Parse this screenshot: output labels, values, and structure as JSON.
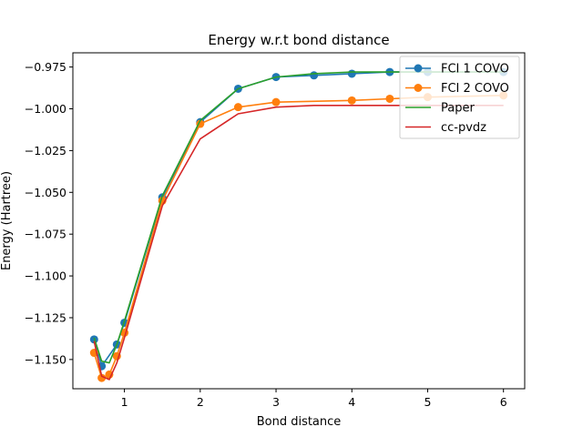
{
  "chart_data": {
    "type": "line",
    "title": "Energy w.r.t bond distance",
    "xlabel": "Bond distance",
    "ylabel": "Energy (Hartree)",
    "xlim": [
      0.32,
      6.28
    ],
    "ylim": [
      -1.1675,
      -0.9665
    ],
    "xticks": [
      1,
      2,
      3,
      4,
      5,
      6
    ],
    "xtick_labels": [
      "1",
      "2",
      "3",
      "4",
      "5",
      "6"
    ],
    "yticks": [
      -0.975,
      -1.0,
      -1.025,
      -1.05,
      -1.075,
      -1.1,
      -1.125,
      -1.15
    ],
    "ytick_labels": [
      "−0.975",
      "−1.000",
      "−1.025",
      "−1.050",
      "−1.075",
      "−1.100",
      "−1.125",
      "−1.150"
    ],
    "grid": false,
    "legend_position": "top-right",
    "series": [
      {
        "name": "FCI 1 COVO",
        "color": "#1f77b4",
        "marker": true,
        "x": [
          0.6,
          0.7,
          0.9,
          1.0,
          1.5,
          2.0,
          2.5,
          3.0,
          3.5,
          4.0,
          4.5,
          5.0,
          6.0
        ],
        "y": [
          -1.138,
          -1.154,
          -1.141,
          -1.128,
          -1.053,
          -1.008,
          -0.988,
          -0.981,
          -0.98,
          -0.979,
          -0.978,
          -0.978,
          -0.978
        ]
      },
      {
        "name": "FCI 2 COVO",
        "color": "#ff7f0e",
        "marker": true,
        "x": [
          0.6,
          0.7,
          0.8,
          0.9,
          1.0,
          1.5,
          2.0,
          2.5,
          3.0,
          4.0,
          4.5,
          5.0,
          6.0
        ],
        "y": [
          -1.146,
          -1.161,
          -1.159,
          -1.148,
          -1.134,
          -1.055,
          -1.009,
          -0.999,
          -0.996,
          -0.995,
          -0.994,
          -0.993,
          -0.992
        ]
      },
      {
        "name": "Paper",
        "color": "#2ca02c",
        "marker": false,
        "x": [
          0.6,
          0.7,
          0.8,
          0.9,
          1.0,
          1.5,
          2.0,
          2.5,
          3.0,
          3.5,
          4.0,
          4.5,
          5.0,
          6.0
        ],
        "y": [
          -1.137,
          -1.151,
          -1.152,
          -1.141,
          -1.127,
          -1.052,
          -1.007,
          -0.988,
          -0.981,
          -0.979,
          -0.978,
          -0.978,
          -0.978,
          -0.978
        ]
      },
      {
        "name": "cc-pvdz",
        "color": "#d62728",
        "marker": false,
        "x": [
          0.6,
          0.7,
          0.8,
          0.9,
          1.0,
          1.5,
          2.0,
          2.5,
          3.0,
          3.5,
          4.0,
          5.0,
          6.0
        ],
        "y": [
          -1.139,
          -1.16,
          -1.162,
          -1.152,
          -1.137,
          -1.058,
          -1.018,
          -1.003,
          -0.999,
          -0.998,
          -0.998,
          -0.998,
          -0.998
        ]
      }
    ]
  }
}
